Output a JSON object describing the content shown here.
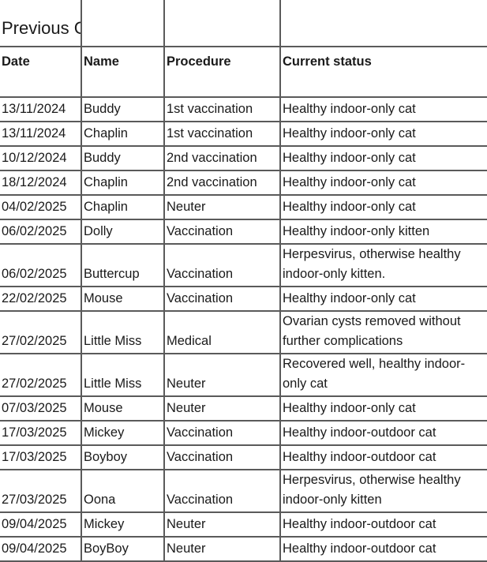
{
  "title": "Previous Claims",
  "columns": [
    "Date",
    "Name",
    "Procedure",
    "Current status"
  ],
  "rows": [
    {
      "date": "13/11/2024",
      "name": "Buddy",
      "procedure": "1st vaccination",
      "status": "Healthy indoor-only cat"
    },
    {
      "date": "13/11/2024",
      "name": "Chaplin",
      "procedure": "1st vaccination",
      "status": "Healthy indoor-only cat"
    },
    {
      "date": "10/12/2024",
      "name": "Buddy",
      "procedure": "2nd vaccination",
      "status": "Healthy indoor-only cat"
    },
    {
      "date": "18/12/2024",
      "name": "Chaplin",
      "procedure": "2nd vaccination",
      "status": "Healthy indoor-only cat"
    },
    {
      "date": "04/02/2025",
      "name": "Chaplin",
      "procedure": "Neuter",
      "status": "Healthy indoor-only cat"
    },
    {
      "date": "06/02/2025",
      "name": "Dolly",
      "procedure": "Vaccination",
      "status": "Healthy indoor-only kitten"
    },
    {
      "date": "06/02/2025",
      "name": "Buttercup",
      "procedure": "Vaccination",
      "status": "Herpesvirus, otherwise healthy indoor-only kitten."
    },
    {
      "date": "22/02/2025",
      "name": "Mouse",
      "procedure": "Vaccination",
      "status": "Healthy indoor-only cat"
    },
    {
      "date": "27/02/2025",
      "name": "Little Miss",
      "procedure": "Medical",
      "status": "Ovarian cysts removed without further complications"
    },
    {
      "date": "27/02/2025",
      "name": "Little Miss",
      "procedure": "Neuter",
      "status": "Recovered well, healthy indoor-only cat"
    },
    {
      "date": "07/03/2025",
      "name": "Mouse",
      "procedure": "Neuter",
      "status": "Healthy indoor-only cat"
    },
    {
      "date": "17/03/2025",
      "name": "Mickey",
      "procedure": "Vaccination",
      "status": "Healthy indoor-outdoor cat"
    },
    {
      "date": "17/03/2025",
      "name": "Boyboy",
      "procedure": "Vaccination",
      "status": "Healthy indoor-outdoor cat"
    },
    {
      "date": "27/03/2025",
      "name": "Oona",
      "procedure": "Vaccination",
      "status": "Herpesvirus, otherwise healthy indoor-only kitten"
    },
    {
      "date": "09/04/2025",
      "name": "Mickey",
      "procedure": "Neuter",
      "status": "Healthy indoor-outdoor cat"
    },
    {
      "date": "09/04/2025",
      "name": "BoyBoy",
      "procedure": "Neuter",
      "status": "Healthy indoor-outdoor cat"
    }
  ]
}
